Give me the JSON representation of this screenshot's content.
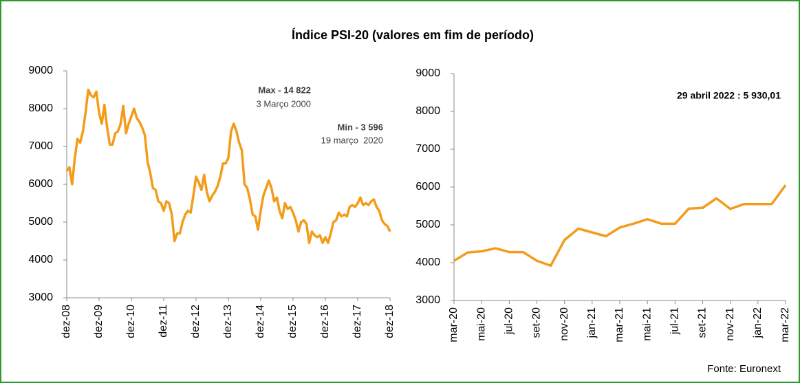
{
  "title": "Índice PSI-20 (valores em fim de período)",
  "source": "Fonte: Euronext",
  "chart_data": [
    {
      "type": "line",
      "color": "#f39c1a",
      "categories": [
        "dez-08",
        null,
        null,
        null,
        null,
        null,
        null,
        null,
        null,
        null,
        null,
        null,
        "dez-09",
        null,
        null,
        null,
        null,
        null,
        null,
        null,
        null,
        null,
        null,
        null,
        "dez-10",
        null,
        null,
        null,
        null,
        null,
        null,
        null,
        null,
        null,
        null,
        null,
        "dez-11",
        null,
        null,
        null,
        null,
        null,
        null,
        null,
        null,
        null,
        null,
        null,
        "dez-12",
        null,
        null,
        null,
        null,
        null,
        null,
        null,
        null,
        null,
        null,
        null,
        "dez-13",
        null,
        null,
        null,
        null,
        null,
        null,
        null,
        null,
        null,
        null,
        null,
        "dez-14",
        null,
        null,
        null,
        null,
        null,
        null,
        null,
        null,
        null,
        null,
        null,
        "dez-15",
        null,
        null,
        null,
        null,
        null,
        null,
        null,
        null,
        null,
        null,
        null,
        "dez-16",
        null,
        null,
        null,
        null,
        null,
        null,
        null,
        null,
        null,
        null,
        null,
        "dez-17",
        null,
        null,
        null,
        null,
        null,
        null,
        null,
        null,
        null,
        null,
        null,
        "dez-18"
      ],
      "values": [
        6350,
        6450,
        6000,
        6700,
        7200,
        7100,
        7400,
        7900,
        8500,
        8350,
        8300,
        8450,
        7900,
        7600,
        8100,
        7500,
        7050,
        7050,
        7350,
        7400,
        7600,
        8070,
        7350,
        7600,
        7800,
        8000,
        7750,
        7650,
        7500,
        7300,
        6600,
        6300,
        5900,
        5850,
        5550,
        5500,
        5300,
        5550,
        5500,
        5200,
        4500,
        4700,
        4700,
        5000,
        5200,
        5300,
        5250,
        5700,
        6200,
        6050,
        5850,
        6250,
        5800,
        5550,
        5700,
        5800,
        5950,
        6200,
        6550,
        6550,
        6700,
        7400,
        7600,
        7400,
        7100,
        6900,
        6000,
        5900,
        5600,
        5200,
        5150,
        4800,
        5300,
        5700,
        5900,
        6100,
        5900,
        5550,
        5650,
        5300,
        5100,
        5500,
        5350,
        5400,
        5250,
        5050,
        4750,
        5000,
        5050,
        4950,
        4450,
        4750,
        4650,
        4600,
        4650,
        4450,
        4600,
        4450,
        4700,
        5000,
        5050,
        5250,
        5150,
        5200,
        5150,
        5400,
        5450,
        5400,
        5500,
        5650,
        5450,
        5500,
        5450,
        5550,
        5600,
        5400,
        5300,
        5050,
        4950,
        4900,
        4750
      ],
      "ylim": [
        3000,
        9000
      ],
      "yticks": [
        3000,
        4000,
        5000,
        6000,
        7000,
        8000,
        9000
      ],
      "annotations": [
        "Max - 14 822",
        "3 Março 2000",
        "Min - 3 596",
        "19 março  2020"
      ]
    },
    {
      "type": "line",
      "color": "#f39c1a",
      "categories": [
        "mar-20",
        null,
        "mai-20",
        null,
        "jul-20",
        null,
        "set-20",
        null,
        "nov-20",
        null,
        "jan-21",
        null,
        "mar-21",
        null,
        "mai-21",
        null,
        "jul-21",
        null,
        "set-21",
        null,
        "nov-21",
        null,
        "jan-22",
        null,
        "mar-22"
      ],
      "values": [
        4050,
        4270,
        4300,
        4380,
        4280,
        4280,
        4050,
        3920,
        4600,
        4900,
        4800,
        4700,
        4930,
        5030,
        5150,
        5030,
        5030,
        5430,
        5450,
        5700,
        5420,
        5550,
        5550,
        5550,
        6050
      ],
      "ylim": [
        3000,
        9000
      ],
      "yticks": [
        3000,
        4000,
        5000,
        6000,
        7000,
        8000,
        9000
      ],
      "annotations": [
        "29 abril 2022 : 5 930,01"
      ]
    }
  ]
}
